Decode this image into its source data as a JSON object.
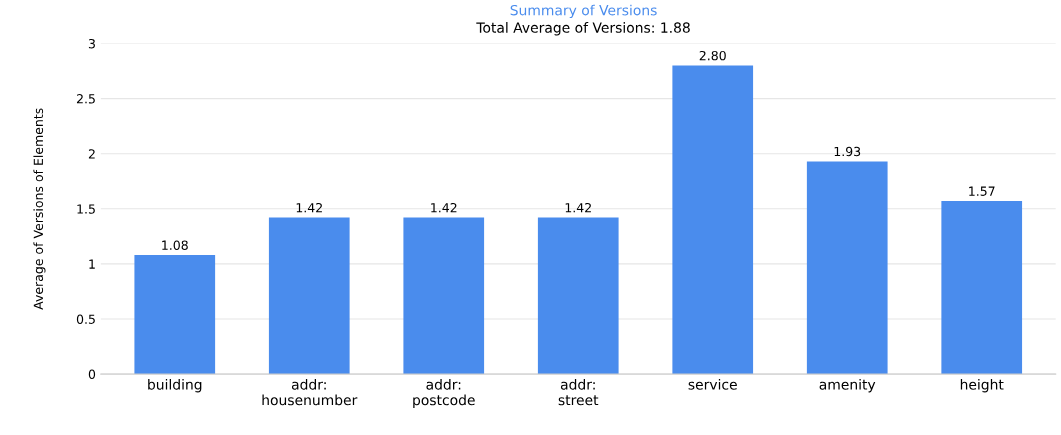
{
  "chart_data": {
    "type": "bar",
    "title": "Summary of Versions",
    "subtitle": "Total Average of Versions: 1.88",
    "ylabel": "Average of Versions of Elements",
    "categories": [
      "building",
      "addr:\nhousenumber",
      "addr:\npostcode",
      "addr:\nstreet",
      "service",
      "amenity",
      "height"
    ],
    "values": [
      1.08,
      1.42,
      1.42,
      1.42,
      2.8,
      1.93,
      1.57
    ],
    "color": "#4a8ced",
    "value_labels": [
      "1.08",
      "1.42",
      "1.42",
      "1.42",
      "2.80",
      "1.93",
      "1.57"
    ],
    "ylim": [
      0,
      3
    ],
    "yticks": [
      0,
      0.5,
      1,
      1.5,
      2,
      2.5,
      3
    ],
    "grid": "y"
  }
}
